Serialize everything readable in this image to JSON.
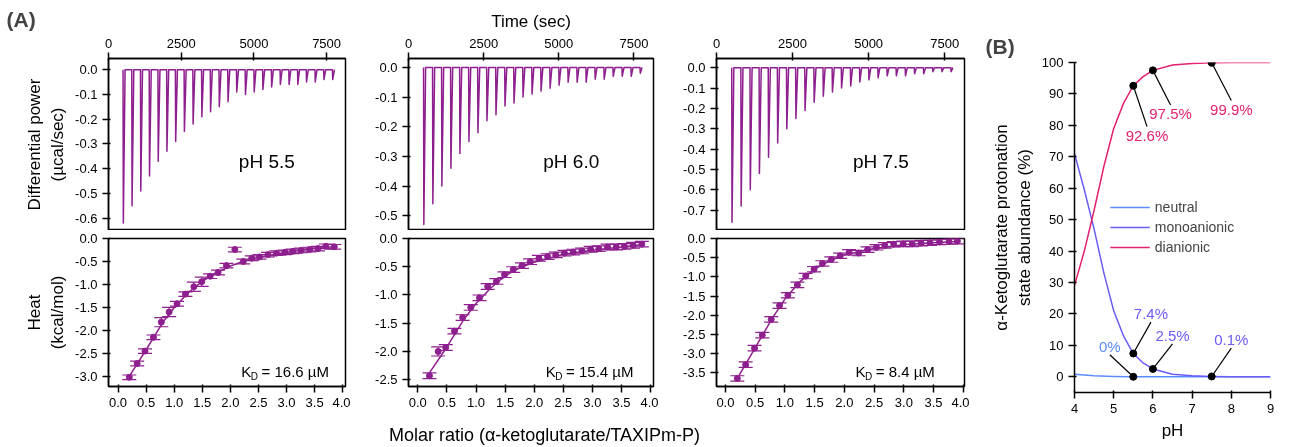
{
  "chart_data": [
    {
      "type": "line",
      "title": "(A)",
      "ylabel": "Differential power\n(µcal/sec)",
      "annotations": [
        "pH 5.5"
      ],
      "xlim": [
        0,
        8150
      ],
      "xticks": [
        0,
        2500,
        5000,
        7500
      ],
      "ylim": [
        -0.65,
        0.045
      ],
      "yticks": [
        {
          "value": 0,
          "label": "0.0"
        },
        {
          "value": -0.1,
          "label": "-0.1"
        },
        {
          "value": -0.2,
          "label": "-0.2"
        },
        {
          "value": -0.3,
          "label": "-0.3"
        },
        {
          "value": -0.4,
          "label": "-0.4"
        },
        {
          "value": -0.5,
          "label": "-0.5"
        },
        {
          "value": -0.6,
          "label": "-0.6"
        }
      ],
      "series": [
        {
          "color": "#8e1f8e",
          "x": [
            500,
            510,
            570,
            800,
            810,
            870,
            1100,
            1110,
            1170,
            1400,
            1410,
            1470,
            1700,
            1710,
            1770,
            2000,
            2010,
            2070,
            2300,
            2310,
            2370,
            2600,
            2610,
            2670,
            2900,
            2910,
            2970,
            3200,
            3210,
            3270,
            3500,
            3510,
            3570,
            3800,
            3810,
            3870,
            4100,
            4110,
            4170,
            4400,
            4410,
            4470,
            4700,
            4710,
            4770,
            5000,
            5010,
            5070,
            5300,
            5310,
            5370,
            5600,
            5610,
            5670,
            5900,
            5910,
            5970,
            6200,
            6210,
            6270,
            6500,
            6510,
            6570,
            6800,
            6810,
            6870,
            7100,
            7110,
            7170,
            7400,
            7410,
            7470,
            7700,
            7710,
            7770
          ],
          "values": [
            0,
            -0.62,
            0,
            0,
            -0.55,
            0,
            0,
            -0.49,
            0,
            0,
            -0.43,
            0,
            0,
            -0.37,
            0,
            0,
            -0.33,
            0,
            0,
            -0.29,
            0,
            0,
            -0.25,
            0,
            0,
            -0.22,
            0,
            0,
            -0.19,
            0,
            0,
            -0.17,
            0,
            0,
            -0.15,
            0,
            0,
            -0.13,
            0,
            0,
            -0.09,
            0,
            0,
            -0.1,
            0,
            0,
            -0.09,
            0,
            0,
            -0.08,
            0,
            0,
            -0.07,
            0,
            0,
            -0.06,
            0,
            0,
            -0.06,
            0,
            0,
            -0.06,
            0,
            0,
            -0.05,
            0,
            0,
            -0.05,
            0,
            0,
            -0.04,
            0,
            0,
            -0.04,
            0
          ]
        }
      ]
    },
    {
      "type": "line",
      "xlabel": "Time (sec)",
      "annotations": [
        "pH 6.0"
      ],
      "xlim": [
        0,
        8150
      ],
      "xticks": [
        0,
        2500,
        5000,
        7500
      ],
      "ylim": [
        -0.55,
        0.03
      ],
      "yticks": [
        {
          "value": 0,
          "label": "0.0"
        },
        {
          "value": -0.1,
          "label": "-0.1"
        },
        {
          "value": -0.2,
          "label": "-0.2"
        },
        {
          "value": -0.3,
          "label": "-0.3"
        },
        {
          "value": -0.4,
          "label": "-0.4"
        },
        {
          "value": -0.5,
          "label": "-0.5"
        }
      ],
      "series": [
        {
          "color": "#8e1f8e",
          "x": [
            500,
            510,
            570,
            800,
            810,
            870,
            1100,
            1110,
            1170,
            1400,
            1410,
            1470,
            1700,
            1710,
            1770,
            2000,
            2010,
            2070,
            2300,
            2310,
            2370,
            2600,
            2610,
            2670,
            2900,
            2910,
            2970,
            3200,
            3210,
            3270,
            3500,
            3510,
            3570,
            3800,
            3810,
            3870,
            4100,
            4110,
            4170,
            4400,
            4410,
            4470,
            4700,
            4710,
            4770,
            5000,
            5010,
            5070,
            5300,
            5310,
            5370,
            5600,
            5610,
            5670,
            5900,
            5910,
            5970,
            6200,
            6210,
            6270,
            6500,
            6510,
            6570,
            6800,
            6810,
            6870,
            7100,
            7110,
            7170,
            7400,
            7410,
            7470,
            7700,
            7710,
            7770
          ],
          "values": [
            0,
            -0.53,
            0,
            0,
            -0.46,
            0,
            0,
            -0.4,
            0,
            0,
            -0.34,
            0,
            0,
            -0.29,
            0,
            0,
            -0.25,
            0,
            0,
            -0.22,
            0,
            0,
            -0.18,
            0,
            0,
            -0.16,
            0,
            0,
            -0.13,
            0,
            0,
            -0.12,
            0,
            0,
            -0.1,
            0,
            0,
            -0.09,
            0,
            0,
            -0.08,
            0,
            0,
            -0.07,
            0,
            0,
            -0.06,
            0,
            0,
            -0.05,
            0,
            0,
            -0.05,
            0,
            0,
            -0.05,
            0,
            0,
            -0.04,
            0,
            0,
            -0.04,
            0,
            0,
            -0.03,
            0,
            0,
            -0.03,
            0,
            0,
            -0.03,
            0,
            0,
            -0.02,
            0
          ]
        }
      ]
    },
    {
      "type": "line",
      "annotations": [
        "pH 7.5"
      ],
      "xlim": [
        0,
        8150
      ],
      "xticks": [
        0,
        2500,
        5000,
        7500
      ],
      "ylim": [
        -0.8,
        0.045
      ],
      "yticks": [
        {
          "value": 0,
          "label": "0.0"
        },
        {
          "value": -0.1,
          "label": "-0.1"
        },
        {
          "value": -0.2,
          "label": "-0.2"
        },
        {
          "value": -0.3,
          "label": "-0.3"
        },
        {
          "value": -0.4,
          "label": "-0.4"
        },
        {
          "value": -0.5,
          "label": "-0.5"
        },
        {
          "value": -0.6,
          "label": "-0.6"
        },
        {
          "value": -0.7,
          "label": "-0.7"
        }
      ],
      "series": [
        {
          "color": "#8e1f8e",
          "x": [
            500,
            510,
            570,
            800,
            810,
            870,
            1100,
            1110,
            1170,
            1400,
            1410,
            1470,
            1700,
            1710,
            1770,
            2000,
            2010,
            2070,
            2300,
            2310,
            2370,
            2600,
            2610,
            2670,
            2900,
            2910,
            2970,
            3200,
            3210,
            3270,
            3500,
            3510,
            3570,
            3800,
            3810,
            3870,
            4100,
            4110,
            4170,
            4400,
            4410,
            4470,
            4700,
            4710,
            4770,
            5000,
            5010,
            5070,
            5300,
            5310,
            5370,
            5600,
            5610,
            5670,
            5900,
            5910,
            5970,
            6200,
            6210,
            6270,
            6500,
            6510,
            6570,
            6800,
            6810,
            6870,
            7100,
            7110,
            7170,
            7400,
            7410,
            7470,
            7700,
            7710,
            7770
          ],
          "values": [
            0,
            -0.76,
            0,
            0,
            -0.68,
            0,
            0,
            -0.6,
            0,
            0,
            -0.52,
            0,
            0,
            -0.44,
            0,
            0,
            -0.37,
            0,
            0,
            -0.3,
            0,
            0,
            -0.25,
            0,
            0,
            -0.21,
            0,
            0,
            -0.17,
            0,
            0,
            -0.14,
            0,
            0,
            -0.12,
            0,
            0,
            -0.1,
            0,
            0,
            -0.09,
            0,
            0,
            -0.07,
            0,
            0,
            -0.06,
            0,
            0,
            -0.05,
            0,
            0,
            -0.04,
            0,
            0,
            -0.04,
            0,
            0,
            -0.04,
            0,
            0,
            -0.03,
            0,
            0,
            -0.03,
            0,
            0,
            -0.02,
            0,
            0,
            -0.02,
            0,
            0,
            -0.02,
            0
          ]
        }
      ]
    },
    {
      "type": "scatter",
      "marker": "circle",
      "ylabel": "Heat\n(kcal/mol)",
      "annotations": [
        "K$_{D}$ = 16.6 µM"
      ],
      "xlim": [
        -0.17,
        4.05
      ],
      "ylim": [
        -3.22,
        0
      ],
      "xticks": [
        {
          "value": 0,
          "label": "0.0"
        },
        {
          "value": 0.5,
          "label": "0.5"
        },
        {
          "value": 1,
          "label": "1.0"
        },
        {
          "value": 1.5,
          "label": "1.5"
        },
        {
          "value": 2,
          "label": "2.0"
        },
        {
          "value": 2.5,
          "label": "2.5"
        },
        {
          "value": 3,
          "label": "3.0"
        },
        {
          "value": 3.5,
          "label": "3.5"
        },
        {
          "value": 4,
          "label": "4.0"
        }
      ],
      "yticks": [
        {
          "value": 0,
          "label": "0.0"
        },
        {
          "value": -0.5,
          "label": "-0.5"
        },
        {
          "value": -1,
          "label": "-1.0"
        },
        {
          "value": -1.5,
          "label": "-1.5"
        },
        {
          "value": -2,
          "label": "-2.0"
        },
        {
          "value": -2.5,
          "label": "-2.5"
        },
        {
          "value": -3,
          "label": "-3.0"
        }
      ],
      "series": [
        {
          "color": "#8e1f8e",
          "x": [
            0.2,
            0.34,
            0.48,
            0.63,
            0.77,
            0.91,
            1.05,
            1.2,
            1.35,
            1.49,
            1.64,
            1.78,
            1.93,
            2.08,
            2.23,
            2.38,
            2.52,
            2.67,
            2.82,
            2.97,
            3.11,
            3.26,
            3.41,
            3.56,
            3.7,
            3.85
          ],
          "values": [
            -3.02,
            -2.72,
            -2.45,
            -2.15,
            -1.82,
            -1.6,
            -1.42,
            -1.21,
            -1.05,
            -0.94,
            -0.82,
            -0.74,
            -0.59,
            -0.24,
            -0.5,
            -0.43,
            -0.4,
            -0.35,
            -0.32,
            -0.3,
            -0.28,
            -0.26,
            -0.24,
            -0.22,
            -0.17,
            -0.18
          ],
          "errors": [
            0.05,
            0.05,
            0.05,
            0.05,
            0.1,
            0.1,
            0.05,
            0.05,
            0.1,
            0.1,
            0.05,
            0.05,
            0.05,
            0.05,
            0.05,
            0.05,
            0.05,
            0.05,
            0.05,
            0.05,
            0.05,
            0.05,
            0.05,
            0.05,
            0.05,
            0.05
          ]
        },
        {
          "type": "line",
          "marker": "none",
          "color": "#8e1f8e",
          "x": [
            0.2,
            0.5,
            0.8,
            1.0,
            1.25,
            1.5,
            1.75,
            2.0,
            2.25,
            2.5,
            3.0,
            3.5,
            3.85
          ],
          "values": [
            -3.0,
            -2.42,
            -1.82,
            -1.5,
            -1.18,
            -0.93,
            -0.75,
            -0.6,
            -0.49,
            -0.41,
            -0.3,
            -0.22,
            -0.18
          ]
        }
      ]
    },
    {
      "type": "scatter",
      "marker": "circle",
      "xlabel": "Molar ratio (α-ketoglutarate/TAXIPm-P)",
      "annotations": [
        "K$_{D}$ = 15.4 µM"
      ],
      "xlim": [
        -0.16,
        4.05
      ],
      "ylim": [
        -2.62,
        0
      ],
      "xticks": [
        {
          "value": 0,
          "label": "0.0"
        },
        {
          "value": 0.5,
          "label": "0.5"
        },
        {
          "value": 1,
          "label": "1.0"
        },
        {
          "value": 1.5,
          "label": "1.5"
        },
        {
          "value": 2,
          "label": "2.0"
        },
        {
          "value": 2.5,
          "label": "2.5"
        },
        {
          "value": 3,
          "label": "3.0"
        },
        {
          "value": 3.5,
          "label": "3.5"
        },
        {
          "value": 4,
          "label": "4.0"
        }
      ],
      "yticks": [
        {
          "value": 0,
          "label": "0.0"
        },
        {
          "value": -0.5,
          "label": "-0.5"
        },
        {
          "value": -1,
          "label": "-1.0"
        },
        {
          "value": -1.5,
          "label": "-1.5"
        },
        {
          "value": -2,
          "label": "-2.0"
        },
        {
          "value": -2.5,
          "label": "-2.5"
        }
      ],
      "series": [
        {
          "color": "#8e1f8e",
          "x": [
            0.2,
            0.35,
            0.48,
            0.63,
            0.77,
            0.91,
            1.06,
            1.2,
            1.35,
            1.49,
            1.64,
            1.79,
            1.93,
            2.08,
            2.23,
            2.37,
            2.52,
            2.67,
            2.82,
            2.97,
            3.11,
            3.26,
            3.41,
            3.55,
            3.7,
            3.85
          ],
          "values": [
            -2.43,
            -2.0,
            -1.93,
            -1.64,
            -1.4,
            -1.22,
            -1.05,
            -0.85,
            -0.76,
            -0.64,
            -0.55,
            -0.48,
            -0.41,
            -0.35,
            -0.32,
            -0.29,
            -0.26,
            -0.24,
            -0.22,
            -0.19,
            -0.18,
            -0.15,
            -0.15,
            -0.14,
            -0.12,
            -0.1
          ],
          "errors": [
            0.05,
            0.08,
            0.05,
            0.05,
            0.05,
            0.05,
            0.05,
            0.05,
            0.05,
            0.05,
            0.05,
            0.05,
            0.05,
            0.05,
            0.05,
            0.05,
            0.05,
            0.05,
            0.05,
            0.05,
            0.05,
            0.05,
            0.05,
            0.05,
            0.05,
            0.05
          ]
        },
        {
          "type": "line",
          "marker": "none",
          "color": "#8e1f8e",
          "x": [
            0.2,
            0.5,
            0.8,
            1.0,
            1.25,
            1.5,
            1.75,
            2.0,
            2.5,
            3.0,
            3.5,
            3.85
          ],
          "values": [
            -2.38,
            -1.92,
            -1.42,
            -1.15,
            -0.88,
            -0.66,
            -0.52,
            -0.42,
            -0.28,
            -0.21,
            -0.15,
            -0.11
          ]
        }
      ]
    },
    {
      "type": "scatter",
      "marker": "circle",
      "annotations": [
        "K$_{D}$ = 8.4 µM"
      ],
      "xlim": [
        -0.15,
        4.02
      ],
      "ylim": [
        -3.86,
        0
      ],
      "xticks": [
        {
          "value": 0,
          "label": "0.0"
        },
        {
          "value": 0.5,
          "label": "0.5"
        },
        {
          "value": 1,
          "label": "1.0"
        },
        {
          "value": 1.5,
          "label": "1.5"
        },
        {
          "value": 2,
          "label": "2.0"
        },
        {
          "value": 2.5,
          "label": "2.5"
        },
        {
          "value": 3,
          "label": "3.0"
        },
        {
          "value": 3.5,
          "label": "3.5"
        },
        {
          "value": 4,
          "label": "4.0"
        }
      ],
      "yticks": [
        {
          "value": 0,
          "label": "0.0"
        },
        {
          "value": -0.5,
          "label": "-0.5"
        },
        {
          "value": -1,
          "label": "-1.0"
        },
        {
          "value": -1.5,
          "label": "-1.5"
        },
        {
          "value": -2,
          "label": "-2.0"
        },
        {
          "value": -2.5,
          "label": "-2.5"
        },
        {
          "value": -3,
          "label": "-3.0"
        },
        {
          "value": -3.5,
          "label": "-3.5"
        }
      ],
      "series": [
        {
          "color": "#8e1f8e",
          "x": [
            0.2,
            0.34,
            0.49,
            0.62,
            0.77,
            0.91,
            1.05,
            1.21,
            1.35,
            1.49,
            1.63,
            1.78,
            1.93,
            2.08,
            2.24,
            2.39,
            2.54,
            2.68,
            2.83,
            2.99,
            3.14,
            3.29,
            3.44,
            3.6,
            3.76,
            3.9
          ],
          "values": [
            -3.65,
            -3.29,
            -2.86,
            -2.52,
            -2.11,
            -1.75,
            -1.48,
            -1.21,
            -0.98,
            -0.8,
            -0.65,
            -0.55,
            -0.45,
            -0.36,
            -0.38,
            -0.29,
            -0.23,
            -0.18,
            -0.15,
            -0.14,
            -0.14,
            -0.12,
            -0.11,
            -0.09,
            -0.08,
            -0.07
          ],
          "errors": [
            0.07,
            0.07,
            0.07,
            0.07,
            0.07,
            0.07,
            0.07,
            0.07,
            0.07,
            0.07,
            0.07,
            0.07,
            0.07,
            0.07,
            0.07,
            0.07,
            0.07,
            0.07,
            0.07,
            0.07,
            0.07,
            0.07,
            0.07,
            0.07,
            0.07,
            0.07
          ]
        },
        {
          "type": "line",
          "marker": "none",
          "color": "#8e1f8e",
          "x": [
            0.2,
            0.5,
            0.8,
            1.0,
            1.25,
            1.5,
            1.75,
            2.0,
            2.5,
            3.0,
            3.5,
            3.9
          ],
          "values": [
            -3.65,
            -2.85,
            -2.05,
            -1.58,
            -1.13,
            -0.8,
            -0.58,
            -0.43,
            -0.26,
            -0.16,
            -0.11,
            -0.08
          ]
        }
      ]
    },
    {
      "type": "line",
      "title": "(B)",
      "xlabel": "pH",
      "ylabel": "α-Ketoglutarate protonation\nstate abundance (%)",
      "legend": "center",
      "xlim": [
        4,
        9
      ],
      "ylim": [
        -5,
        100
      ],
      "xticks": [
        4,
        5,
        6,
        7,
        8,
        9
      ],
      "yticks": [
        0,
        10,
        20,
        30,
        40,
        50,
        60,
        70,
        80,
        90,
        100
      ],
      "series": [
        {
          "name": "neutral",
          "color": "#5b8cff",
          "x": [
            4,
            4.5,
            5,
            5.5,
            6,
            7,
            8,
            9
          ],
          "values": [
            0.8,
            0.3,
            0.1,
            0,
            0,
            0,
            0,
            0
          ]
        },
        {
          "name": "monoanionic",
          "color": "#6a5cf5",
          "x": [
            4,
            4.25,
            4.5,
            4.75,
            5,
            5.25,
            5.5,
            5.75,
            6,
            6.5,
            7,
            7.5,
            8,
            9
          ],
          "values": [
            71,
            59.5,
            47,
            33,
            21,
            13,
            7.4,
            4.4,
            2.5,
            0.8,
            0.3,
            0.1,
            0,
            0
          ]
        },
        {
          "name": "dianionic",
          "color": "#e3206e",
          "x": [
            4,
            4.25,
            4.5,
            4.75,
            5,
            5.25,
            5.5,
            5.75,
            6,
            6.5,
            7,
            7.5,
            8,
            9
          ],
          "values": [
            29,
            40,
            53,
            67,
            79,
            87,
            92.6,
            95.5,
            97.5,
            99.2,
            99.7,
            99.9,
            100,
            100
          ]
        }
      ],
      "annotations": [
        {
          "text": "92.6%",
          "x": 5.5,
          "y": 92.6
        },
        {
          "text": "97.5%",
          "x": 6,
          "y": 97.5
        },
        {
          "text": "99.9%",
          "x": 7.5,
          "y": 99.9
        },
        {
          "text": "7.4%",
          "x": 5.5,
          "y": 7.4
        },
        {
          "text": "2.5%",
          "x": 6,
          "y": 2.5
        },
        {
          "text": "0.1%",
          "x": 7.5,
          "y": 0.1
        },
        {
          "text": "0%",
          "x": 5.5,
          "y": 0
        }
      ]
    }
  ]
}
